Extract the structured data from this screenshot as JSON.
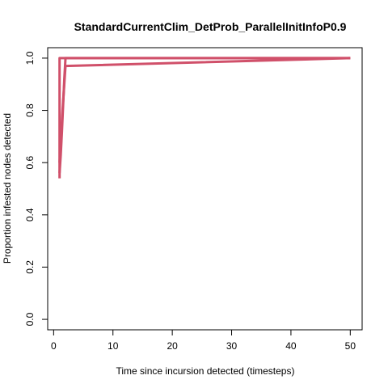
{
  "chart_data": {
    "type": "line",
    "title": "StandardCurrentClim_DetProb_ParallelInitInfoP0.9",
    "xlabel": "Time since incursion detected (timesteps)",
    "ylabel": "Proportion infested nodes detected",
    "xlim": [
      -1,
      52
    ],
    "ylim": [
      -0.04,
      1.04
    ],
    "x_ticks": [
      0,
      10,
      20,
      30,
      40,
      50
    ],
    "y_ticks": [
      0.0,
      0.2,
      0.4,
      0.6,
      0.8,
      1.0
    ],
    "x_tick_labels": [
      "0",
      "10",
      "20",
      "30",
      "40",
      "50"
    ],
    "y_tick_labels": [
      "0.0",
      "0.2",
      "0.4",
      "0.6",
      "0.8",
      "1.0"
    ],
    "grid": false,
    "series": [
      {
        "color": "#d0506a",
        "x": [
          1,
          1,
          2,
          2,
          50
        ],
        "y": [
          0.54,
          1.0,
          1.0,
          1.0,
          1.0
        ]
      },
      {
        "color": "#d0506a",
        "x": [
          1,
          1.2,
          1.4,
          1.6,
          1.8,
          2,
          50
        ],
        "y": [
          0.56,
          0.63,
          0.72,
          0.82,
          0.92,
          1.0,
          1.0
        ]
      },
      {
        "color": "#d0506a",
        "x": [
          1,
          1.5,
          2,
          50
        ],
        "y": [
          0.6,
          0.8,
          0.97,
          1.0
        ]
      }
    ]
  }
}
